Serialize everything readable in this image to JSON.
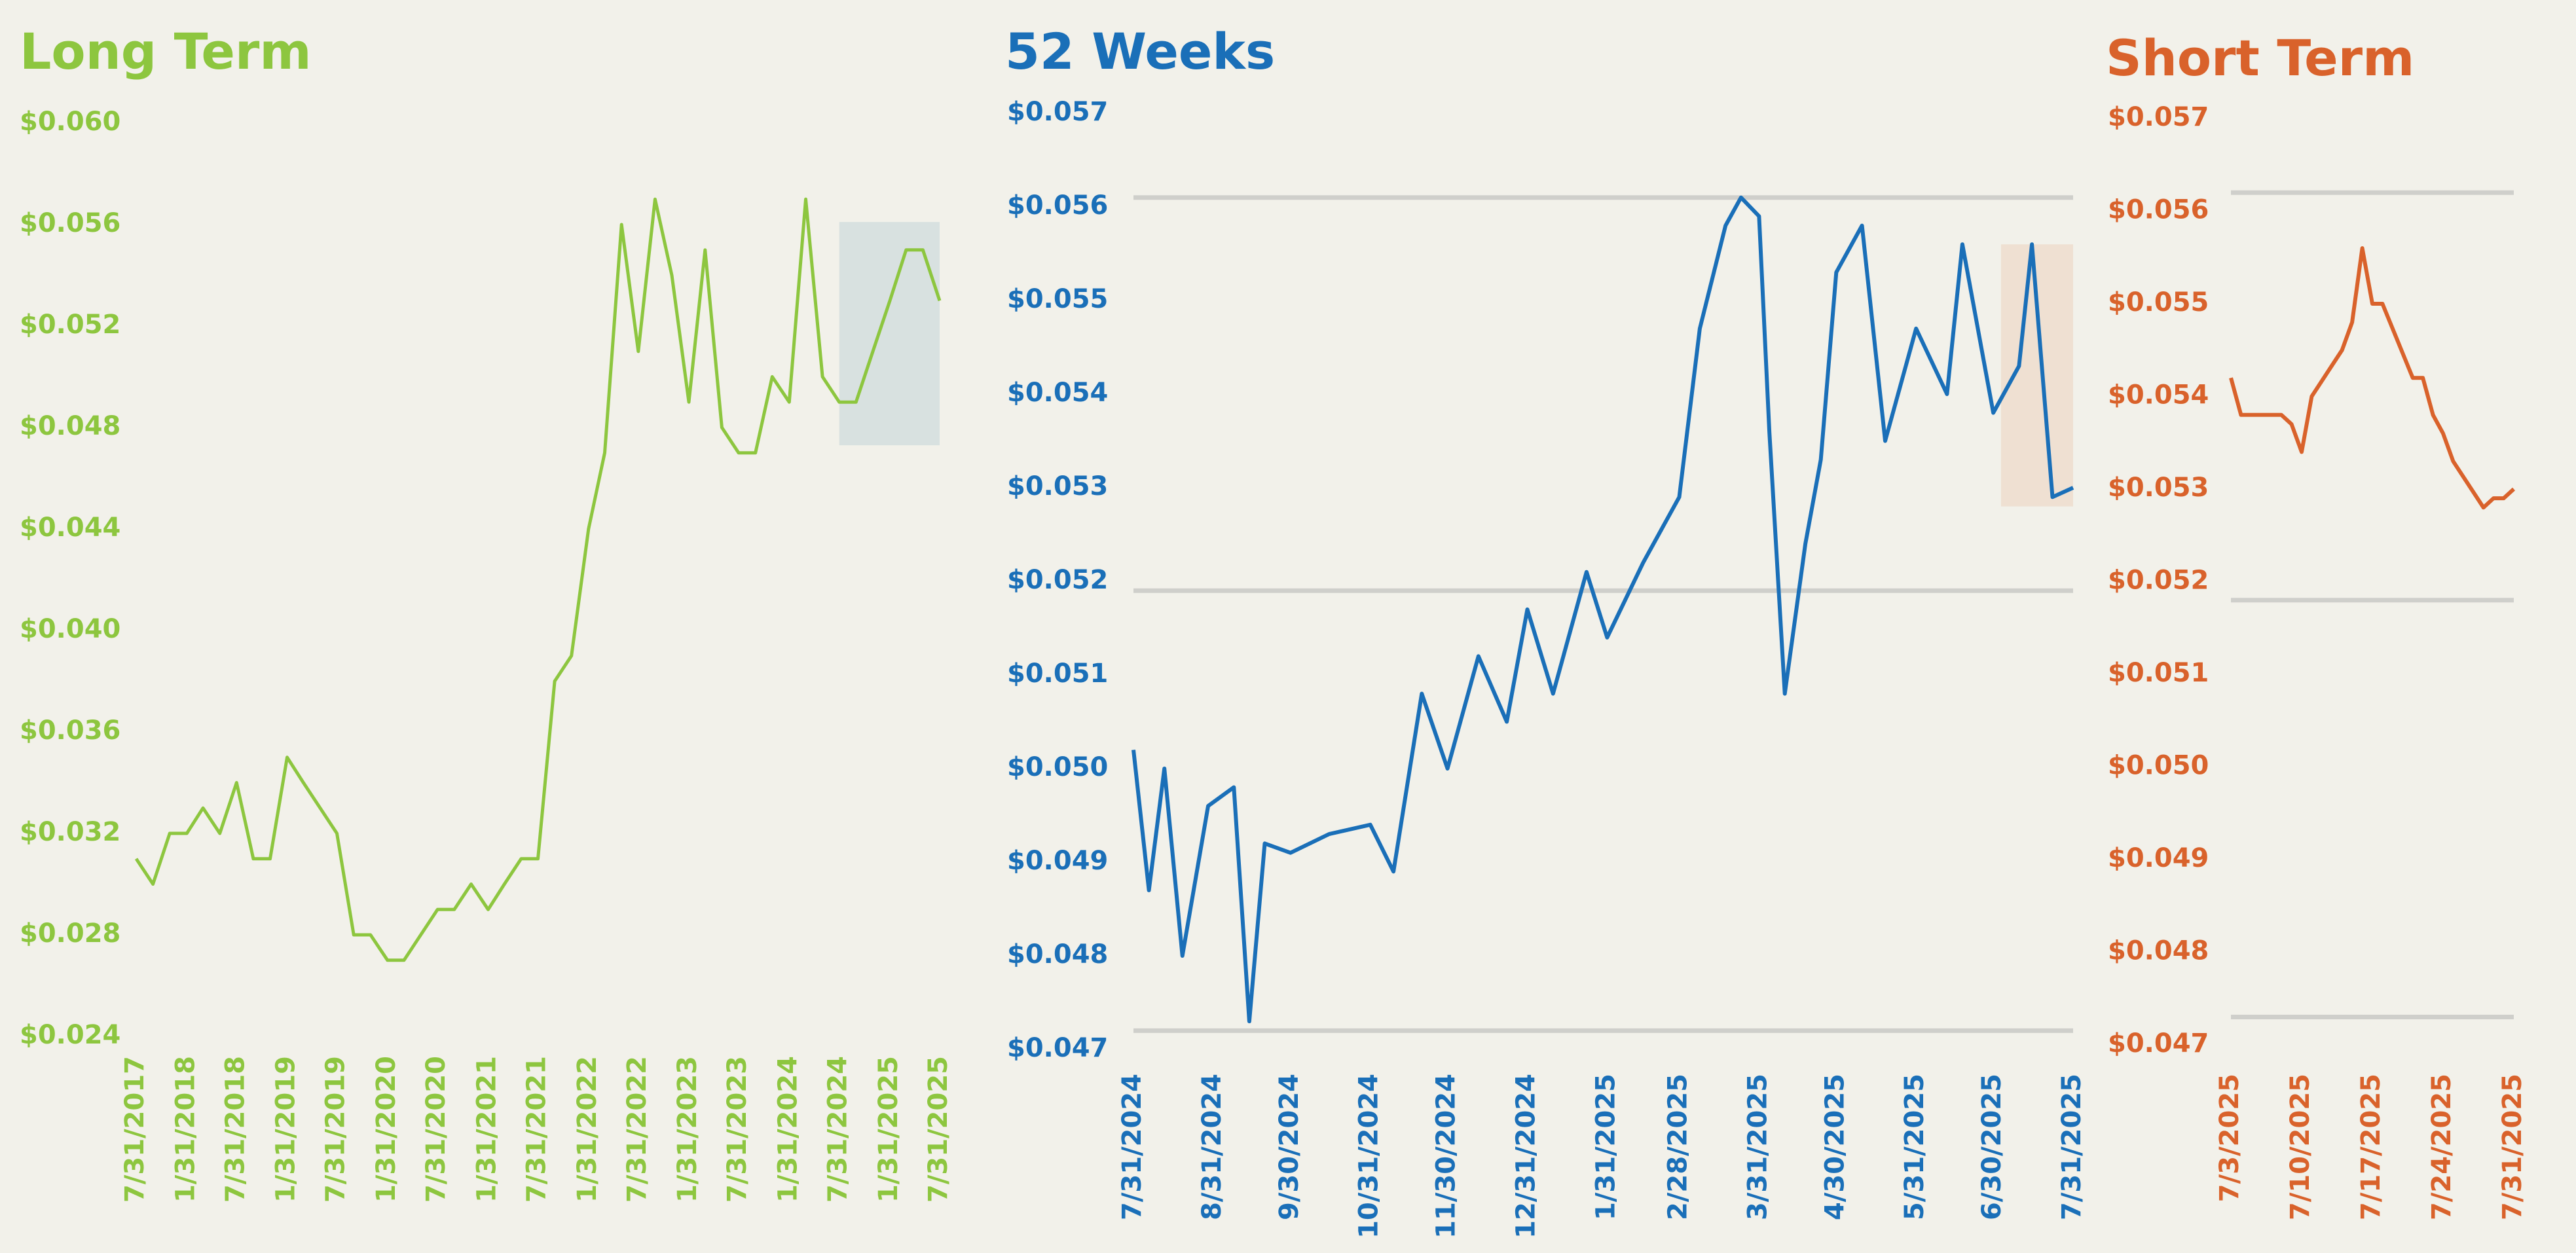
{
  "chart_data": [
    {
      "type": "line",
      "title": "Long Term",
      "color": "#8dc63f",
      "x": [
        "7/31/2017",
        "9/30/2017",
        "11/30/2017",
        "1/31/2018",
        "3/31/2018",
        "5/31/2018",
        "7/31/2018",
        "9/30/2018",
        "11/30/2018",
        "1/31/2019",
        "3/31/2019",
        "5/31/2019",
        "7/31/2019",
        "9/30/2019",
        "11/30/2019",
        "1/31/2020",
        "3/31/2020",
        "5/31/2020",
        "7/31/2020",
        "9/30/2020",
        "11/30/2020",
        "1/31/2021",
        "3/31/2021",
        "5/31/2021",
        "7/31/2021",
        "9/30/2021",
        "11/30/2021",
        "1/31/2022",
        "3/31/2022",
        "5/31/2022",
        "7/31/2022",
        "9/30/2022",
        "11/30/2022",
        "1/31/2023",
        "3/31/2023",
        "5/31/2023",
        "7/31/2023",
        "9/30/2023",
        "11/30/2023",
        "1/31/2024",
        "3/31/2024",
        "5/31/2024",
        "7/31/2024",
        "9/30/2024",
        "11/30/2024",
        "1/31/2025",
        "3/31/2025",
        "5/31/2025",
        "7/31/2025"
      ],
      "values": [
        0.031,
        0.03,
        0.032,
        0.032,
        0.033,
        0.032,
        0.034,
        0.031,
        0.031,
        0.035,
        0.034,
        0.033,
        0.032,
        0.028,
        0.028,
        0.027,
        0.027,
        0.028,
        0.029,
        0.029,
        0.03,
        0.029,
        0.03,
        0.031,
        0.031,
        0.038,
        0.039,
        0.044,
        0.047,
        0.056,
        0.051,
        0.057,
        0.054,
        0.049,
        0.055,
        0.048,
        0.047,
        0.047,
        0.05,
        0.049,
        0.057,
        0.05,
        0.049,
        0.049,
        0.051,
        0.053,
        0.055,
        0.055,
        0.053
      ],
      "xlim": [
        "7/31/2017",
        "7/31/2025"
      ],
      "xticks": [
        "7/31/2017",
        "1/31/2018",
        "7/31/2018",
        "1/31/2019",
        "7/31/2019",
        "1/31/2020",
        "7/31/2020",
        "1/31/2021",
        "7/31/2021",
        "1/31/2022",
        "7/31/2022",
        "1/31/2023",
        "7/31/2023",
        "1/31/2024",
        "7/31/2024",
        "1/31/2025",
        "7/31/2025"
      ],
      "ylim": [
        0.024,
        0.06
      ],
      "yticks": [
        {
          "value": 0.024,
          "label": "$0.024"
        },
        {
          "value": 0.028,
          "label": "$0.028"
        },
        {
          "value": 0.032,
          "label": "$0.032"
        },
        {
          "value": 0.036,
          "label": "$0.036"
        },
        {
          "value": 0.04,
          "label": "$0.040"
        },
        {
          "value": 0.044,
          "label": "$0.044"
        },
        {
          "value": 0.048,
          "label": "$0.048"
        },
        {
          "value": 0.052,
          "label": "$0.052"
        },
        {
          "value": 0.056,
          "label": "$0.056"
        },
        {
          "value": 0.06,
          "label": "$0.060"
        }
      ]
    },
    {
      "type": "line",
      "title": "52 Weeks",
      "color": "#1a6fb8",
      "x": [
        "7/31/2024",
        "8/6/2024",
        "8/12/2024",
        "8/19/2024",
        "8/29/2024",
        "9/8/2024",
        "9/14/2024",
        "9/20/2024",
        "9/30/2024",
        "10/15/2024",
        "10/31/2024",
        "11/9/2024",
        "11/20/2024",
        "11/30/2024",
        "12/12/2024",
        "12/23/2024",
        "12/31/2024",
        "1/10/2025",
        "1/23/2025",
        "1/31/2025",
        "2/14/2025",
        "2/28/2025",
        "3/8/2025",
        "3/18/2025",
        "3/24/2025",
        "3/31/2025",
        "4/4/2025",
        "4/10/2025",
        "4/18/2025",
        "4/24/2025",
        "4/30/2025",
        "5/10/2025",
        "5/19/2025",
        "5/31/2025",
        "6/12/2025",
        "6/18/2025",
        "6/30/2025",
        "7/10/2025",
        "7/15/2025",
        "7/23/2025",
        "7/31/2025"
      ],
      "values": [
        0.0502,
        0.0487,
        0.05,
        0.048,
        0.0496,
        0.0498,
        0.0473,
        0.0492,
        0.0491,
        0.0493,
        0.0494,
        0.0489,
        0.0508,
        0.05,
        0.0512,
        0.0505,
        0.0517,
        0.0508,
        0.0521,
        0.0514,
        0.0522,
        0.0529,
        0.0547,
        0.0558,
        0.0561,
        0.0559,
        0.0536,
        0.0508,
        0.0524,
        0.0533,
        0.0553,
        0.0558,
        0.0535,
        0.0547,
        0.054,
        0.0556,
        0.0538,
        0.0543,
        0.0556,
        0.0529,
        0.053
      ],
      "xlim": [
        "7/31/2024",
        "7/31/2025"
      ],
      "xticks": [
        "7/31/2024",
        "8/31/2024",
        "9/30/2024",
        "10/31/2024",
        "11/30/2024",
        "12/31/2024",
        "1/31/2025",
        "2/28/2025",
        "3/31/2025",
        "4/30/2025",
        "5/31/2025",
        "6/30/2025",
        "7/31/2025"
      ],
      "ylim": [
        0.047,
        0.057
      ],
      "yticks": [
        {
          "value": 0.047,
          "label": "$0.047"
        },
        {
          "value": 0.048,
          "label": "$0.048"
        },
        {
          "value": 0.049,
          "label": "$0.049"
        },
        {
          "value": 0.05,
          "label": "$0.050"
        },
        {
          "value": 0.051,
          "label": "$0.051"
        },
        {
          "value": 0.052,
          "label": "$0.052"
        },
        {
          "value": 0.053,
          "label": "$0.053"
        },
        {
          "value": 0.054,
          "label": "$0.054"
        },
        {
          "value": 0.055,
          "label": "$0.055"
        },
        {
          "value": 0.056,
          "label": "$0.056"
        },
        {
          "value": 0.057,
          "label": "$0.057"
        }
      ],
      "ygrid": [
        0.0472,
        0.0519,
        0.0561
      ]
    },
    {
      "type": "line",
      "title": "Short Term",
      "color": "#d9622b",
      "x": [
        "7/3/2025",
        "7/4/2025",
        "7/7/2025",
        "7/8/2025",
        "7/9/2025",
        "7/10/2025",
        "7/11/2025",
        "7/14/2025",
        "7/15/2025",
        "7/16/2025",
        "7/17/2025",
        "7/18/2025",
        "7/21/2025",
        "7/22/2025",
        "7/23/2025",
        "7/24/2025",
        "7/25/2025",
        "7/28/2025",
        "7/29/2025",
        "7/30/2025",
        "7/31/2025"
      ],
      "values": [
        0.0542,
        0.0538,
        0.0538,
        0.0538,
        0.0537,
        0.0534,
        0.054,
        0.0545,
        0.0548,
        0.0556,
        0.055,
        0.055,
        0.0542,
        0.0542,
        0.0538,
        0.0536,
        0.0533,
        0.0528,
        0.0529,
        0.0529,
        0.053
      ],
      "xlim": [
        "7/3/2025",
        "7/31/2025"
      ],
      "xticks": [
        "7/3/2025",
        "7/10/2025",
        "7/17/2025",
        "7/24/2025",
        "7/31/2025"
      ],
      "ylim": [
        0.047,
        0.057
      ],
      "yticks": [
        {
          "value": 0.047,
          "label": "$0.047"
        },
        {
          "value": 0.048,
          "label": "$0.048"
        },
        {
          "value": 0.049,
          "label": "$0.049"
        },
        {
          "value": 0.05,
          "label": "$0.050"
        },
        {
          "value": 0.051,
          "label": "$0.051"
        },
        {
          "value": 0.052,
          "label": "$0.052"
        },
        {
          "value": 0.053,
          "label": "$0.053"
        },
        {
          "value": 0.054,
          "label": "$0.054"
        },
        {
          "value": 0.055,
          "label": "$0.055"
        },
        {
          "value": 0.056,
          "label": "$0.056"
        },
        {
          "value": 0.057,
          "label": "$0.057"
        }
      ],
      "ygrid": [
        0.0473,
        0.0518,
        0.0562
      ]
    }
  ]
}
